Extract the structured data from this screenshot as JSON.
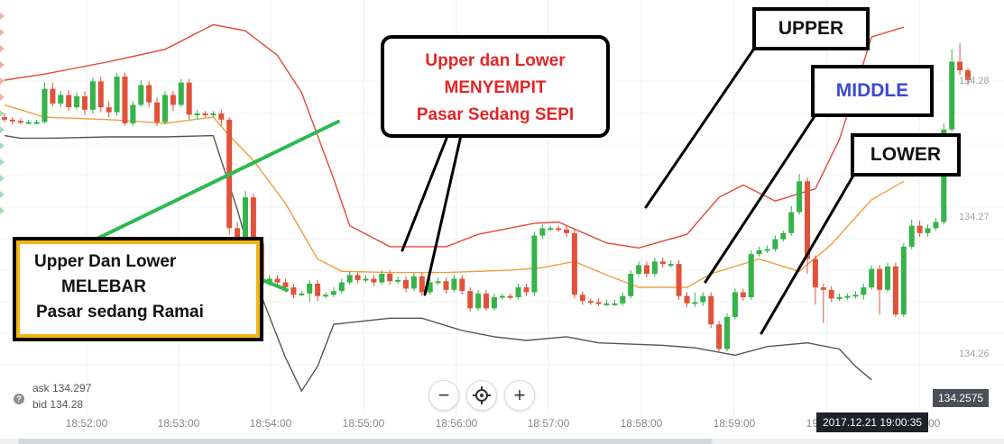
{
  "chart_data": {
    "type": "candlestick",
    "xlabel": "",
    "ylabel": "",
    "x_ticks": [
      "18:52:00",
      "18:53:00",
      "18:54:00",
      "18:55:00",
      "18:56:00",
      "18:57:00",
      "18:58:00",
      "18:59:00",
      "19:00:00",
      "19:01:00"
    ],
    "y_ticks": [
      "134.28",
      "134.27",
      "134.26"
    ],
    "ylim": [
      134.2545,
      134.2905
    ],
    "grid": true,
    "colors": {
      "up": "#36b34a",
      "down": "#e0533a",
      "upper_band": "#e04a3a",
      "middle_band": "#f39c3c",
      "lower_band": "#555555"
    },
    "series": [
      {
        "name": "UPPER",
        "points": [
          [
            0,
            134.284
          ],
          [
            5,
            134.2845
          ],
          [
            13,
            134.2855
          ],
          [
            20,
            134.2865
          ],
          [
            26,
            134.2885
          ],
          [
            30,
            134.288
          ],
          [
            34,
            134.286
          ],
          [
            37,
            134.283
          ],
          [
            41,
            134.276
          ],
          [
            43,
            134.2722
          ],
          [
            48,
            134.2705
          ],
          [
            55,
            134.2705
          ],
          [
            59,
            134.2715
          ],
          [
            66,
            134.2724
          ],
          [
            69,
            134.2725
          ],
          [
            75,
            134.2708
          ],
          [
            79,
            134.2704
          ],
          [
            85,
            134.2715
          ],
          [
            89,
            134.2745
          ],
          [
            92,
            134.2755
          ],
          [
            96,
            134.2742
          ],
          [
            101,
            134.2752
          ],
          [
            104,
            134.2792
          ],
          [
            108,
            134.2875
          ],
          [
            112,
            134.2883
          ]
        ]
      },
      {
        "name": "MIDDLE",
        "points": [
          [
            0,
            134.282
          ],
          [
            5,
            134.281
          ],
          [
            13,
            134.2808
          ],
          [
            20,
            134.2805
          ],
          [
            26,
            134.281
          ],
          [
            28,
            134.2795
          ],
          [
            31,
            134.2775
          ],
          [
            35,
            134.274
          ],
          [
            39,
            134.2695
          ],
          [
            42,
            134.2685
          ],
          [
            48,
            134.2684
          ],
          [
            55,
            134.2684
          ],
          [
            59,
            134.2685
          ],
          [
            63,
            134.2686
          ],
          [
            67,
            134.2688
          ],
          [
            71,
            134.2693
          ],
          [
            75,
            134.2682
          ],
          [
            79,
            134.2672
          ],
          [
            85,
            134.2672
          ],
          [
            88,
            134.2683
          ],
          [
            94,
            134.2695
          ],
          [
            99,
            134.2685
          ],
          [
            103,
            134.2707
          ],
          [
            108,
            134.2743
          ],
          [
            112,
            134.2758
          ]
        ]
      },
      {
        "name": "LOWER",
        "points": [
          [
            0,
            134.2795
          ],
          [
            2,
            134.2793
          ],
          [
            6,
            134.2793
          ],
          [
            13,
            134.2794
          ],
          [
            20,
            134.2794
          ],
          [
            26,
            134.2795
          ],
          [
            29,
            134.2735
          ],
          [
            32,
            134.2665
          ],
          [
            35,
            134.2615
          ],
          [
            37,
            134.2588
          ],
          [
            39,
            134.2608
          ],
          [
            41,
            134.2642
          ],
          [
            48,
            134.2647
          ],
          [
            52,
            134.2647
          ],
          [
            57,
            134.2637
          ],
          [
            61,
            134.2632
          ],
          [
            65,
            134.2629
          ],
          [
            70,
            134.2632
          ],
          [
            74,
            134.2627
          ],
          [
            78,
            134.2626
          ],
          [
            82,
            134.2625
          ],
          [
            86,
            134.2623
          ],
          [
            91,
            134.2617
          ],
          [
            95,
            134.2624
          ],
          [
            100,
            134.2627
          ],
          [
            104,
            134.2622
          ],
          [
            106,
            134.2608
          ],
          [
            108,
            134.2597
          ]
        ]
      }
    ],
    "candles": [
      [
        134.281,
        134.2808,
        134.2813,
        134.2806
      ],
      [
        134.2808,
        134.2807,
        134.281,
        134.2804
      ],
      [
        134.2807,
        134.2806,
        134.2809,
        134.2804
      ],
      [
        134.2806,
        134.2806,
        134.2808,
        134.2804
      ],
      [
        134.2806,
        134.2806,
        134.2808,
        134.2804
      ],
      [
        134.2806,
        134.2833,
        134.2838,
        134.2805
      ],
      [
        134.2833,
        134.2821,
        134.2838,
        134.2819
      ],
      [
        134.2821,
        134.2828,
        134.2831,
        134.2818
      ],
      [
        134.2828,
        134.2818,
        134.2832,
        134.2815
      ],
      [
        134.2818,
        134.2827,
        134.283,
        134.2816
      ],
      [
        134.2827,
        134.2816,
        134.2831,
        134.2812
      ],
      [
        134.2816,
        134.2839,
        134.2842,
        134.2813
      ],
      [
        134.2839,
        134.2818,
        134.2843,
        134.2814
      ],
      [
        134.2818,
        134.2814,
        134.2823,
        134.281
      ],
      [
        134.2814,
        134.2843,
        134.2846,
        134.2811
      ],
      [
        134.2843,
        134.2805,
        134.2846,
        134.2803
      ],
      [
        134.2805,
        134.282,
        134.2823,
        134.2803
      ],
      [
        134.282,
        134.2836,
        134.284,
        134.2818
      ],
      [
        134.2836,
        134.2822,
        134.2839,
        134.2818
      ],
      [
        134.2822,
        134.2806,
        134.2826,
        134.2803
      ],
      [
        134.2806,
        134.2828,
        134.2831,
        134.2804
      ],
      [
        134.2828,
        134.282,
        134.2831,
        134.2815
      ],
      [
        134.282,
        134.2838,
        134.2841,
        134.2818
      ],
      [
        134.2838,
        134.2812,
        134.2841,
        134.2808
      ],
      [
        134.2812,
        134.2813,
        134.2816,
        134.2808
      ],
      [
        134.2813,
        134.2812,
        134.2815,
        134.281
      ],
      [
        134.2812,
        134.2813,
        134.2815,
        134.281
      ],
      [
        134.2813,
        134.2808,
        134.2816,
        134.2803
      ],
      [
        134.2808,
        134.272,
        134.281,
        134.2715
      ],
      [
        134.272,
        134.2709,
        134.2725,
        134.2705
      ],
      [
        134.2705,
        134.2745,
        134.275,
        134.2703
      ],
      [
        134.2745,
        134.2708,
        134.2748,
        134.269
      ],
      [
        134.2708,
        134.2675,
        134.271,
        134.267
      ],
      [
        134.2675,
        134.2679,
        134.2682,
        134.2673
      ],
      [
        134.2679,
        134.2676,
        134.2682,
        134.2673
      ],
      [
        134.2676,
        134.2672,
        134.2679,
        134.2668
      ],
      [
        134.2672,
        134.2666,
        134.2675,
        134.2663
      ],
      [
        134.2666,
        134.2667,
        134.2669,
        134.2665
      ],
      [
        134.2667,
        134.2675,
        134.2678,
        134.266
      ],
      [
        134.2675,
        134.2665,
        134.2678,
        134.2661
      ],
      [
        134.2665,
        134.2666,
        134.2668,
        134.2663
      ],
      [
        134.2666,
        134.2669,
        134.2672,
        134.2664
      ],
      [
        134.2669,
        134.2676,
        134.2679,
        134.2667
      ],
      [
        134.2676,
        134.2682,
        134.2685,
        134.2674
      ],
      [
        134.2682,
        134.2678,
        134.2684,
        134.2675
      ],
      [
        134.2678,
        134.2679,
        134.2682,
        134.2676
      ],
      [
        134.2679,
        134.2676,
        134.2682,
        134.2673
      ],
      [
        134.2676,
        134.2683,
        134.2686,
        134.2674
      ],
      [
        134.2683,
        134.2677,
        134.2686,
        134.2674
      ],
      [
        134.2677,
        134.2678,
        134.2681,
        134.2675
      ],
      [
        134.2678,
        134.2671,
        134.2681,
        134.2668
      ],
      [
        134.2671,
        134.2681,
        134.2684,
        134.2669
      ],
      [
        134.2681,
        134.2668,
        134.2684,
        134.2665
      ],
      [
        134.2668,
        134.2676,
        134.2679,
        134.2666
      ],
      [
        134.2676,
        134.2677,
        134.268,
        134.2674
      ],
      [
        134.2677,
        134.267,
        134.268,
        134.2667
      ],
      [
        134.267,
        134.2679,
        134.2682,
        134.2668
      ],
      [
        134.2679,
        134.2669,
        134.2682,
        134.2666
      ],
      [
        134.2669,
        134.2655,
        134.2672,
        134.2652
      ],
      [
        134.2655,
        134.2667,
        134.267,
        134.2653
      ],
      [
        134.2667,
        134.2655,
        134.267,
        134.2653
      ],
      [
        134.2655,
        134.2664,
        134.2667,
        134.2653
      ],
      [
        134.2664,
        134.2665,
        134.2667,
        134.2662
      ],
      [
        134.2665,
        134.2664,
        134.2667,
        134.2662
      ],
      [
        134.2664,
        134.2672,
        134.2675,
        134.2662
      ],
      [
        134.2672,
        134.2668,
        134.2675,
        134.2665
      ],
      [
        134.2668,
        134.2714,
        134.2717,
        134.2665
      ],
      [
        134.2714,
        134.272,
        134.2723,
        134.2711
      ],
      [
        134.272,
        134.272,
        134.2722,
        134.2718
      ],
      [
        134.272,
        134.2719,
        134.2722,
        134.2717
      ],
      [
        134.2719,
        134.2716,
        134.2722,
        134.2713
      ],
      [
        134.2716,
        134.2666,
        134.2719,
        134.2663
      ],
      [
        134.2666,
        134.2661,
        134.2669,
        134.2658
      ],
      [
        134.2661,
        134.266,
        134.2663,
        134.2658
      ],
      [
        134.266,
        134.2659,
        134.2663,
        134.2657
      ],
      [
        134.2659,
        134.2659,
        134.2662,
        134.2657
      ],
      [
        134.2659,
        134.2659,
        134.2662,
        134.2657
      ],
      [
        134.2659,
        134.2665,
        134.2668,
        134.2657
      ],
      [
        134.2665,
        134.2683,
        134.2686,
        134.2663
      ],
      [
        134.2683,
        134.269,
        134.2693,
        134.2681
      ],
      [
        134.269,
        134.2683,
        134.2693,
        134.268
      ],
      [
        134.2683,
        134.2693,
        134.2696,
        134.2681
      ],
      [
        134.2693,
        134.2691,
        134.2696,
        134.2688
      ],
      [
        134.2691,
        134.2691,
        134.2694,
        134.2688
      ],
      [
        134.2691,
        134.2665,
        134.2694,
        134.2662
      ],
      [
        134.2665,
        134.2659,
        134.2668,
        134.2656
      ],
      [
        134.2659,
        134.266,
        134.2668,
        134.2656
      ],
      [
        134.266,
        134.2665,
        134.2668,
        134.2657
      ],
      [
        134.2665,
        134.2642,
        134.2668,
        134.2639
      ],
      [
        134.2642,
        134.2622,
        134.2645,
        134.2619
      ],
      [
        134.2622,
        134.2648,
        134.2651,
        134.262
      ],
      [
        134.2648,
        134.2668,
        134.2671,
        134.2646
      ],
      [
        134.2668,
        134.2664,
        134.2671,
        134.2661
      ],
      [
        134.2664,
        134.2699,
        134.2702,
        134.2662
      ],
      [
        134.2699,
        134.2702,
        134.2705,
        134.2697
      ],
      [
        134.2702,
        134.2703,
        134.2706,
        134.27
      ],
      [
        134.2703,
        134.2711,
        134.2714,
        134.2701
      ],
      [
        134.2711,
        134.2716,
        134.2718,
        134.2709
      ],
      [
        134.2716,
        134.2733,
        134.2738,
        134.2714
      ],
      [
        134.2733,
        134.2758,
        134.2764,
        134.2731
      ],
      [
        134.2758,
        134.2695,
        134.2761,
        134.2683
      ],
      [
        134.2695,
        134.2672,
        134.2698,
        134.2658
      ],
      [
        134.2672,
        134.267,
        134.2675,
        134.2643
      ],
      [
        134.267,
        134.2663,
        134.2673,
        134.266
      ],
      [
        134.2663,
        134.2664,
        134.2667,
        134.2661
      ],
      [
        134.2664,
        134.2665,
        134.2667,
        134.2662
      ],
      [
        134.2665,
        134.2666,
        134.2669,
        134.2663
      ],
      [
        134.2666,
        134.2672,
        134.2675,
        134.2662
      ],
      [
        134.2672,
        134.2687,
        134.269,
        134.267
      ],
      [
        134.2687,
        134.267,
        134.269,
        134.265
      ],
      [
        134.267,
        134.2689,
        134.2692,
        134.2668
      ],
      [
        134.2689,
        134.265,
        134.2692,
        134.2648
      ],
      [
        134.265,
        134.2705,
        134.2708,
        134.2648
      ],
      [
        134.2705,
        134.2722,
        134.2727,
        134.2703
      ],
      [
        134.2722,
        134.2716,
        134.2726,
        134.2713
      ],
      [
        134.2716,
        134.272,
        134.2723,
        134.2713
      ],
      [
        134.272,
        134.2725,
        134.2728,
        134.2718
      ],
      [
        134.2725,
        134.28,
        134.2805,
        134.2723
      ],
      [
        134.28,
        134.2855,
        134.2865,
        134.2798
      ],
      [
        134.2855,
        134.2848,
        134.287,
        134.2844
      ],
      [
        134.2848,
        134.284,
        134.285,
        134.2836
      ]
    ]
  },
  "ticker": {
    "ask": "ask 134.297",
    "bid": "bid 134.28",
    "price_tag": "134.2575",
    "datetime": "2017.12.21 19:00:35"
  },
  "controls": {
    "zoom_out": "−",
    "zoom_in": "+"
  },
  "callouts": {
    "upper": "UPPER",
    "middle": "MIDDLE",
    "lower": "LOWER",
    "narrow_line1": "Upper dan Lower",
    "narrow_line2": "MENYEMPIT",
    "narrow_line3": "Pasar Sedang SEPI",
    "wide_line1": "Upper Dan Lower",
    "wide_line2": "MELEBAR",
    "wide_line3": "Pasar sedang Ramai"
  }
}
